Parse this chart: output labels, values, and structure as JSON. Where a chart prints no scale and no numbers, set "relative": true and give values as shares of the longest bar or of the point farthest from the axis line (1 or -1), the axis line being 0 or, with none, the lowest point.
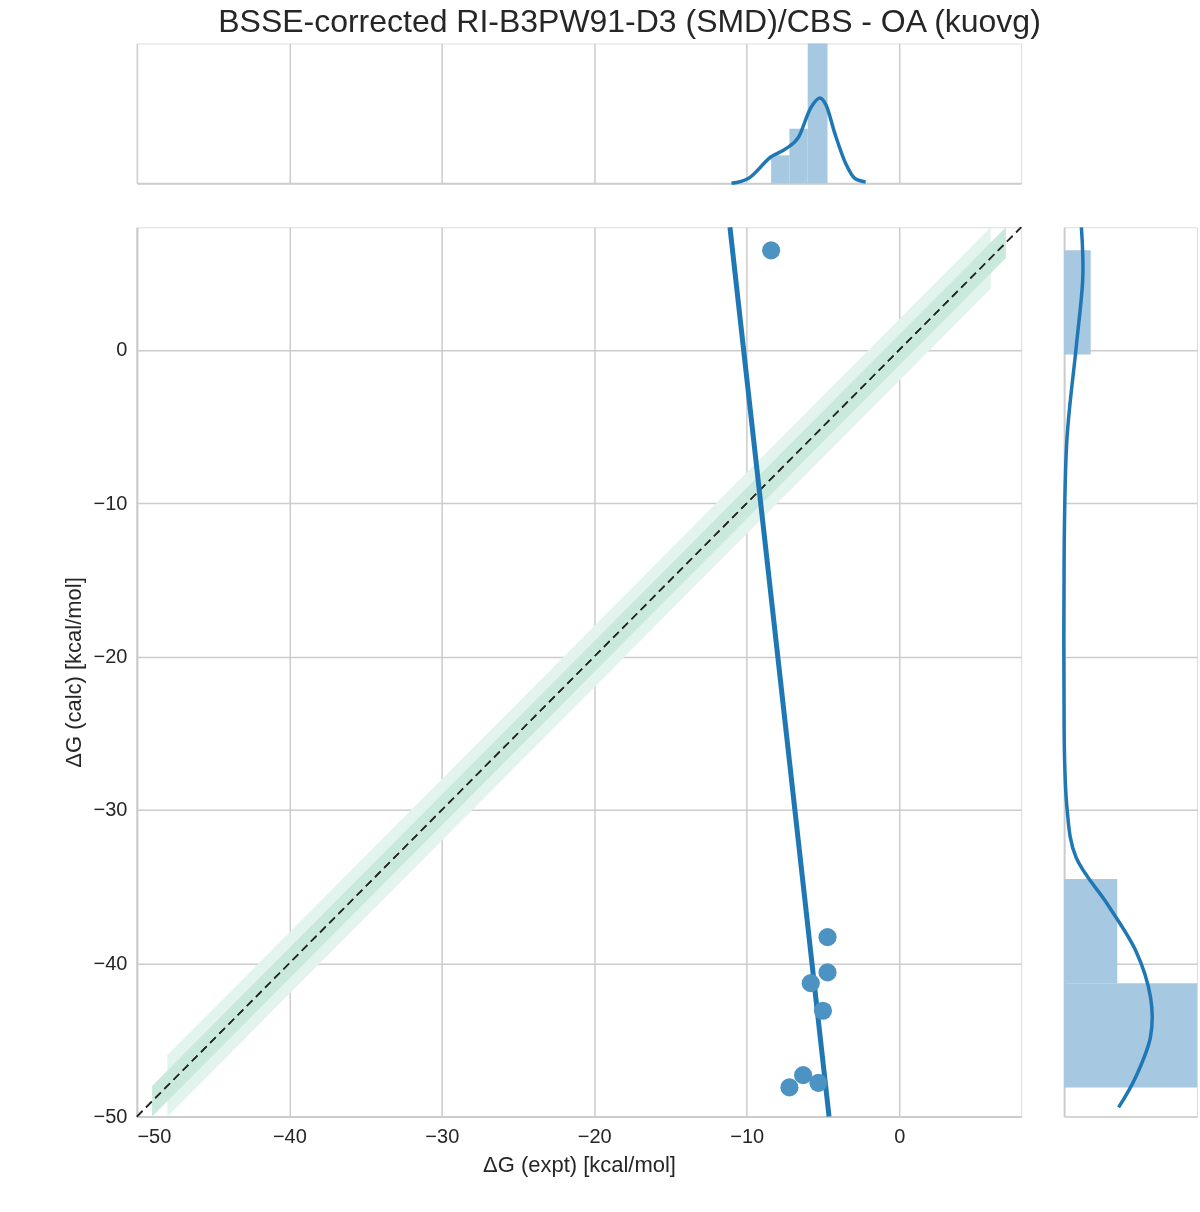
{
  "chart_data": [
    {
      "type": "histogram",
      "title": "BSSE-corrected RI-B3PW91-D3 (SMD)/CBS - OA (kuovg)",
      "relative": true,
      "xlim": [
        -50,
        8
      ],
      "xticks": [
        -50,
        -40,
        -30,
        -20,
        -10,
        0
      ],
      "tick_labels": false,
      "grid": "x",
      "series": [
        {
          "color": "#a6c8e1",
          "bins": [
            -8.4,
            -7.2,
            -6.0,
            -4.7
          ],
          "values": [
            0.2,
            0.39,
            1
          ]
        },
        {
          "type": "line",
          "color": "#1f77b4",
          "x": [
            -11.0,
            -9.9,
            -8.4,
            -7.4,
            -6.6,
            -5.8,
            -5.2,
            -4.8,
            -4.2,
            -3.5,
            -2.9,
            -2.2
          ],
          "values": [
            0,
            0.035,
            0.19,
            0.25,
            0.33,
            0.54,
            0.61,
            0.56,
            0.35,
            0.14,
            0.035,
            0.01
          ]
        }
      ]
    },
    {
      "type": "scatter",
      "xlabel": "ΔG (expt) [kcal/mol]",
      "ylabel": "ΔG (calc) [kcal/mol]",
      "xlim": [
        -50,
        8
      ],
      "ylim": [
        -50,
        8
      ],
      "xticks": [
        -50,
        -40,
        -30,
        -20,
        -10,
        0
      ],
      "yticks": [
        -50,
        -40,
        -30,
        -20,
        -10,
        0
      ],
      "grid": true,
      "series": [
        {
          "type": "line",
          "line_style": "dashed",
          "color": "#262626",
          "x": [
            -50,
            -48,
            6,
            8
          ],
          "values": [
            -50,
            -48,
            6,
            8
          ],
          "lower": [
            null,
            -50,
            4,
            null
          ],
          "upper": [
            null,
            -46,
            8,
            null
          ]
        },
        {
          "type": "line",
          "line_style": "dashed",
          "color": "#262626",
          "x": [
            -50,
            -49,
            7,
            8
          ],
          "values": [
            -50,
            -49,
            7,
            8
          ],
          "lower": [
            null,
            -50,
            6,
            null
          ],
          "upper": [
            null,
            -48,
            8,
            null
          ]
        },
        {
          "type": "line",
          "line_style": "solid",
          "color": "#1f77b4",
          "x": [
            -11.1,
            -4.6
          ],
          "values": [
            8,
            -50
          ]
        },
        {
          "marker": "circle",
          "color": "#4c92c3",
          "x": [
            -8.4,
            -4.7,
            -4.7,
            -5.8,
            -5.0,
            -6.3,
            -7.2,
            -5.3
          ],
          "values": [
            6.5,
            -38.3,
            -40.6,
            -41.3,
            -43.1,
            -47.3,
            -48.1,
            -47.8
          ]
        }
      ]
    },
    {
      "type": "histogram",
      "orientation": "horizontal",
      "relative": true,
      "ylim": [
        -50,
        8
      ],
      "yticks": [
        -50,
        -40,
        -30,
        -20,
        -10,
        0
      ],
      "tick_labels": false,
      "grid": "y",
      "series": [
        {
          "color": "#a6c8e1",
          "bins": [
            -48.1,
            -41.3,
            -34.5,
            -0.3,
            6.5
          ],
          "values": [
            1,
            0.4,
            0,
            0.2
          ]
        },
        {
          "type": "line",
          "color": "#1f77b4",
          "x": [
            -49.4,
            -47.4,
            -44.8,
            -42.2,
            -39.2,
            -36.2,
            -33.1,
            -29.7,
            -24.8,
            -13.5,
            -6.0,
            0.1,
            4.6,
            8.0
          ],
          "values": [
            0.41,
            0.54,
            0.65,
            0.65,
            0.54,
            0.33,
            0.09,
            0.02,
            0,
            0,
            0.02,
            0.09,
            0.14,
            0.13
          ]
        }
      ]
    }
  ]
}
